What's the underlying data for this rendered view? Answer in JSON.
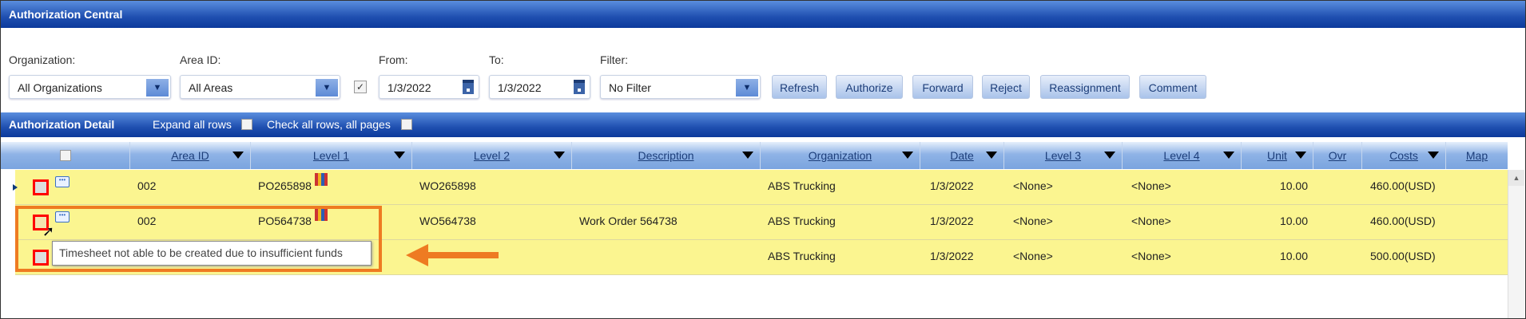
{
  "title": "Authorization Central",
  "filters": {
    "organization": {
      "label": "Organization:",
      "value": "All Organizations"
    },
    "area_id": {
      "label": "Area ID:",
      "value": "All Areas"
    },
    "date_checkbox_checked": true,
    "from": {
      "label": "From:",
      "value": "1/3/2022"
    },
    "to": {
      "label": "To:",
      "value": "1/3/2022"
    },
    "filter": {
      "label": "Filter:",
      "value": "No Filter"
    }
  },
  "buttons": [
    "Refresh",
    "Authorize",
    "Forward",
    "Reject",
    "Reassignment",
    "Comment"
  ],
  "detail": {
    "title": "Authorization Detail",
    "expand_all": "Expand all rows",
    "check_all": "Check all rows, all pages"
  },
  "columns": [
    "Area ID",
    "Level 1",
    "Level 2",
    "Description",
    "Organization",
    "Date",
    "Level 3",
    "Level 4",
    "Unit",
    "Ovr",
    "Costs",
    "Map"
  ],
  "rows": [
    {
      "area_id": "002",
      "level1": "PO265898",
      "level2": "WO265898",
      "description": "",
      "organization": "ABS Trucking",
      "date": "1/3/2022",
      "level3": "<None>",
      "level4": "<None>",
      "unit": "10.00",
      "ovr": "",
      "costs": "460.00(USD)",
      "map": ""
    },
    {
      "area_id": "002",
      "level1": "PO564738",
      "level2": "WO564738",
      "description": "Work Order 564738",
      "organization": "ABS Trucking",
      "date": "1/3/2022",
      "level3": "<None>",
      "level4": "<None>",
      "unit": "10.00",
      "ovr": "",
      "costs": "460.00(USD)",
      "map": ""
    },
    {
      "area_id": "",
      "level1": "",
      "level2": "",
      "description": "",
      "organization": "ABS Trucking",
      "date": "1/3/2022",
      "level3": "<None>",
      "level4": "<None>",
      "unit": "10.00",
      "ovr": "",
      "costs": "500.00(USD)",
      "map": ""
    }
  ],
  "tooltip": "Timesheet not able to be created due to insufficient funds",
  "colors": {
    "header_bar": "#1f4fb0",
    "row_highlight": "#fbf590",
    "annotation": "#ee7b22",
    "row_flag": "#ff0000"
  }
}
